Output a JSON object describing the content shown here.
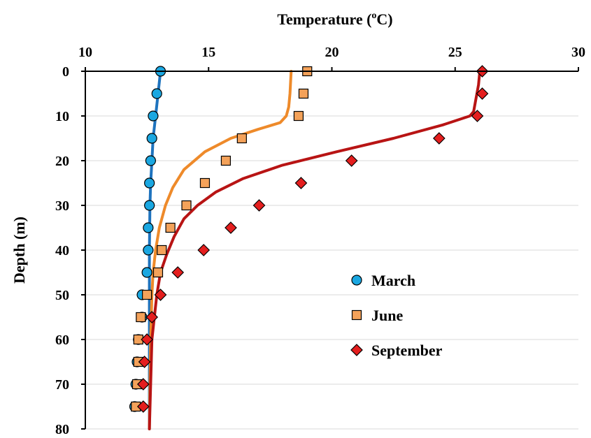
{
  "chart_data": {
    "type": "scatter",
    "xlabel": "Temperature (",
    "xlabel_sup": "o",
    "xlabel_unit": "C)",
    "ylabel": "Depth (m)",
    "xlim": [
      10,
      30
    ],
    "ylim": [
      0,
      80
    ],
    "y_inverted": true,
    "x_axis_position": "top",
    "grid": "horizontal",
    "xticks": [
      "10",
      "15",
      "20",
      "25",
      "30"
    ],
    "yticks": [
      "0",
      "10",
      "20",
      "30",
      "40",
      "50",
      "60",
      "70",
      "80"
    ],
    "legend_position": "lower-right",
    "series": [
      {
        "name": "March",
        "marker": "circle",
        "color": "#1AA7E1",
        "points": [
          [
            13.05,
            0
          ],
          [
            12.9,
            5
          ],
          [
            12.75,
            10
          ],
          [
            12.7,
            15
          ],
          [
            12.65,
            20
          ],
          [
            12.6,
            25
          ],
          [
            12.6,
            30
          ],
          [
            12.55,
            35
          ],
          [
            12.55,
            40
          ],
          [
            12.5,
            45
          ],
          [
            12.3,
            50
          ],
          [
            12.3,
            55
          ],
          [
            12.15,
            60
          ],
          [
            12.1,
            65
          ],
          [
            12.05,
            70
          ],
          [
            12.0,
            75
          ]
        ]
      },
      {
        "name": "June",
        "marker": "square",
        "color": "#F4A25A",
        "points": [
          [
            19.0,
            0
          ],
          [
            18.85,
            5
          ],
          [
            18.65,
            10
          ],
          [
            16.35,
            15
          ],
          [
            15.7,
            20
          ],
          [
            14.85,
            25
          ],
          [
            14.1,
            30
          ],
          [
            13.45,
            35
          ],
          [
            13.1,
            40
          ],
          [
            12.95,
            45
          ],
          [
            12.5,
            50
          ],
          [
            12.25,
            55
          ],
          [
            12.15,
            60
          ],
          [
            12.15,
            65
          ],
          [
            12.1,
            70
          ],
          [
            12.05,
            75
          ]
        ]
      },
      {
        "name": "September",
        "marker": "diamond",
        "color": "#E41E1E",
        "points": [
          [
            26.1,
            0
          ],
          [
            26.1,
            5
          ],
          [
            25.9,
            10
          ],
          [
            24.35,
            15
          ],
          [
            20.8,
            20
          ],
          [
            18.75,
            25
          ],
          [
            17.05,
            30
          ],
          [
            15.9,
            35
          ],
          [
            14.8,
            40
          ],
          [
            13.75,
            45
          ],
          [
            13.05,
            50
          ],
          [
            12.7,
            55
          ],
          [
            12.5,
            60
          ],
          [
            12.4,
            65
          ],
          [
            12.35,
            70
          ],
          [
            12.35,
            75
          ]
        ]
      }
    ],
    "model_lines": [
      {
        "color": "#1E73BE",
        "points": [
          [
            13.05,
            0
          ],
          [
            12.95,
            5
          ],
          [
            12.85,
            10
          ],
          [
            12.75,
            15
          ],
          [
            12.7,
            20
          ],
          [
            12.65,
            25
          ],
          [
            12.62,
            30
          ],
          [
            12.6,
            40
          ],
          [
            12.6,
            50
          ],
          [
            12.6,
            60
          ],
          [
            12.6,
            70
          ],
          [
            12.6,
            80
          ]
        ]
      },
      {
        "color": "#EE8A2A",
        "points": [
          [
            18.35,
            0
          ],
          [
            18.3,
            5
          ],
          [
            18.25,
            8
          ],
          [
            18.15,
            10
          ],
          [
            17.9,
            11.5
          ],
          [
            17.0,
            13
          ],
          [
            15.9,
            15
          ],
          [
            14.85,
            18
          ],
          [
            14.0,
            22
          ],
          [
            13.55,
            26
          ],
          [
            13.25,
            30
          ],
          [
            13.0,
            35
          ],
          [
            12.85,
            40
          ],
          [
            12.75,
            45
          ],
          [
            12.7,
            50
          ],
          [
            12.65,
            60
          ],
          [
            12.62,
            70
          ],
          [
            12.6,
            80
          ]
        ]
      },
      {
        "color": "#B81414",
        "points": [
          [
            26.0,
            0
          ],
          [
            25.95,
            3
          ],
          [
            25.85,
            6
          ],
          [
            25.75,
            9
          ],
          [
            25.6,
            10
          ],
          [
            24.5,
            12
          ],
          [
            22.5,
            15
          ],
          [
            20.2,
            18
          ],
          [
            18.0,
            21
          ],
          [
            16.4,
            24
          ],
          [
            15.3,
            27
          ],
          [
            14.55,
            30
          ],
          [
            14.0,
            33
          ],
          [
            13.6,
            37
          ],
          [
            13.3,
            41
          ],
          [
            13.05,
            45
          ],
          [
            12.9,
            50
          ],
          [
            12.8,
            55
          ],
          [
            12.7,
            60
          ],
          [
            12.65,
            70
          ],
          [
            12.6,
            80
          ]
        ]
      }
    ]
  }
}
